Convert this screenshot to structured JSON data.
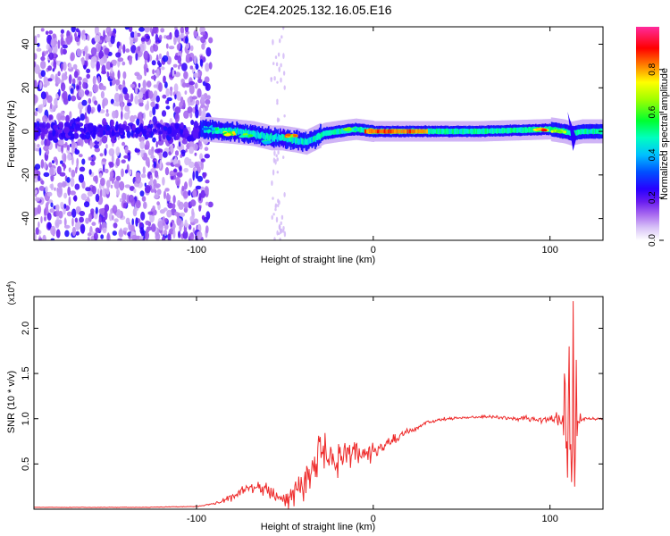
{
  "title": "C2E4.2025.132.16.05.E16",
  "colors": {
    "snr_line": "#ee2a2a",
    "ridge": "#16e5ff",
    "scatter": "#8a2ce8"
  },
  "chart_data": [
    {
      "type": "heatmap",
      "panel": "top",
      "title": "C2E4.2025.132.16.05.E16",
      "xlabel": "Height of straight line (km)",
      "ylabel": "Frequency (Hz)",
      "xlim": [
        -192,
        130
      ],
      "ylim": [
        -50,
        48
      ],
      "xticks": [
        -100,
        0,
        100
      ],
      "xtick_labels": [
        "-100",
        "0",
        "100"
      ],
      "yticks": [
        -40,
        -20,
        0,
        20,
        40
      ],
      "ytick_labels": [
        "-40",
        "-20",
        "0",
        "20",
        "40"
      ],
      "colorbar": {
        "label": "Normalized spectral amplitude",
        "range": [
          0,
          1
        ],
        "ticks": [
          0.0,
          0.2,
          0.4,
          0.6,
          0.8
        ],
        "tick_labels": [
          "0.0",
          "0.2",
          "0.4",
          "0.6",
          "0.8"
        ],
        "colormap": [
          "#ffffff",
          "#c8a8f5",
          "#8a2ce8",
          "#3b00ff",
          "#0030ff",
          "#00bfff",
          "#00ffc8",
          "#00ff40",
          "#80ff00",
          "#ffff00",
          "#ff8000",
          "#ff0000",
          "#ff1a66",
          "#ff33aa"
        ]
      },
      "ridge_center": {
        "x": [
          -96,
          -80,
          -68,
          -58,
          -52,
          -44,
          -38,
          -33,
          -28,
          -20,
          -10,
          0,
          20,
          60,
          100,
          108,
          112,
          118,
          130
        ],
        "y": [
          1,
          0,
          -1,
          -3,
          -3,
          -4,
          -5,
          -3,
          -1,
          0,
          1,
          0,
          0,
          0,
          1,
          0,
          -1,
          0,
          0
        ]
      },
      "hot_spots": [
        {
          "x": -92,
          "y": 1,
          "value": 0.55
        },
        {
          "x": -82,
          "y": -1,
          "value": 0.8
        },
        {
          "x": -73,
          "y": -2,
          "value": 0.7
        },
        {
          "x": -60,
          "y": -5,
          "value": 0.55
        },
        {
          "x": -46,
          "y": -2,
          "value": 0.85
        },
        {
          "x": -12,
          "y": 1,
          "value": 0.65
        },
        {
          "x": 0,
          "y": 0,
          "value": 0.95
        },
        {
          "x": 10,
          "y": 0,
          "value": 0.9
        },
        {
          "x": 25,
          "y": 0,
          "value": 0.8
        },
        {
          "x": 95,
          "y": 1,
          "value": 0.9
        },
        {
          "x": 105,
          "y": 0,
          "value": 0.75
        }
      ]
    },
    {
      "type": "line",
      "panel": "bottom",
      "xlabel": "Height of straight line (km)",
      "ylabel": "SNR (10 * v/v)",
      "y_multiplier": "(x10^4)",
      "xlim": [
        -192,
        130
      ],
      "ylim": [
        0.0,
        2.35
      ],
      "xticks": [
        -100,
        0,
        100
      ],
      "xtick_labels": [
        "-100",
        "0",
        "100"
      ],
      "yticks": [
        0.5,
        1.0,
        1.5,
        2.0
      ],
      "ytick_labels": [
        "0.5",
        "1.0",
        "1.5",
        "2.0"
      ],
      "series": [
        {
          "x": [
            -192,
            -160,
            -130,
            -100,
            -90,
            -80,
            -72,
            -66,
            -60,
            -55,
            -50,
            -45,
            -40,
            -35,
            -30,
            -25,
            -20,
            -15,
            -10,
            -5,
            0,
            5,
            10,
            15,
            20,
            25,
            30,
            40,
            50,
            60,
            70,
            80,
            88,
            95,
            100,
            104,
            106,
            108,
            110,
            112,
            114,
            116,
            120,
            125,
            130
          ],
          "y": [
            0.02,
            0.02,
            0.02,
            0.03,
            0.06,
            0.13,
            0.22,
            0.26,
            0.22,
            0.13,
            0.1,
            0.16,
            0.3,
            0.45,
            0.58,
            0.6,
            0.55,
            0.55,
            0.6,
            0.6,
            0.65,
            0.7,
            0.74,
            0.8,
            0.86,
            0.9,
            0.95,
            1.0,
            1.01,
            1.02,
            1.02,
            1.0,
            1.0,
            0.98,
            1.0,
            0.98,
            0.95,
            1.0,
            0.9,
            0.8,
            0.6,
            1.0,
            1.0,
            1.0,
            1.0
          ],
          "noise": [
            0.003,
            0.003,
            0.003,
            0.005,
            0.015,
            0.05,
            0.08,
            0.1,
            0.1,
            0.07,
            0.1,
            0.18,
            0.25,
            0.3,
            0.28,
            0.25,
            0.22,
            0.2,
            0.18,
            0.15,
            0.12,
            0.1,
            0.08,
            0.06,
            0.05,
            0.03,
            0.03,
            0.02,
            0.02,
            0.02,
            0.02,
            0.03,
            0.05,
            0.05,
            0.05,
            0.12,
            0.2,
            0.35,
            0.5,
            0.6,
            0.4,
            0.1,
            0.03,
            0.02,
            0.02
          ],
          "spikes": [
            {
              "x": 108,
              "y": 1.5
            },
            {
              "x": 110,
              "y": 0.35
            },
            {
              "x": 111,
              "y": 1.8
            },
            {
              "x": 112,
              "y": 0.3
            },
            {
              "x": 113,
              "y": 2.3
            },
            {
              "x": 114,
              "y": 0.25
            },
            {
              "x": 115,
              "y": 1.65
            }
          ]
        }
      ]
    }
  ]
}
